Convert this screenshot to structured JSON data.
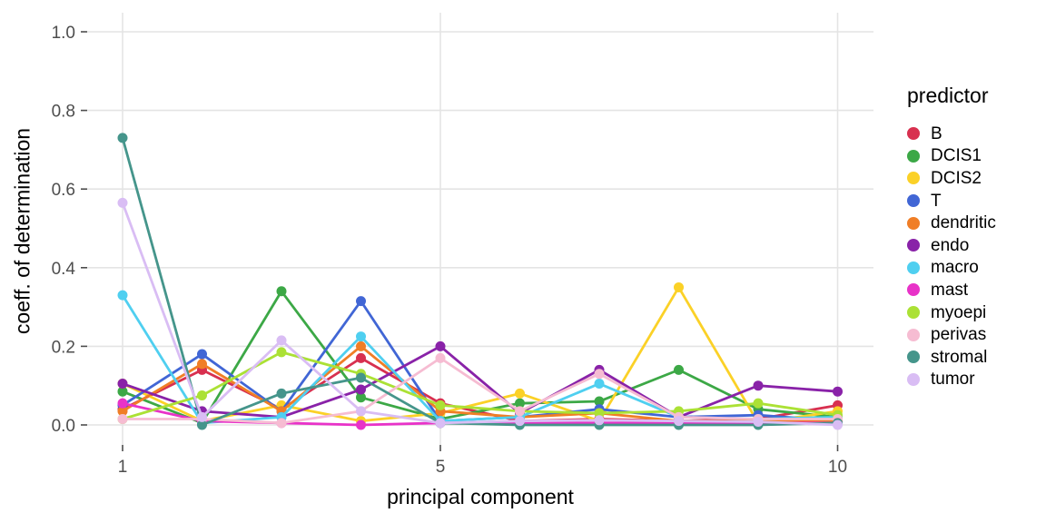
{
  "chart_data": {
    "type": "line",
    "title": "",
    "xlabel": "principal component",
    "ylabel": "coeff. of determination",
    "legend_title": "predictor",
    "legend_position": "right",
    "x": [
      1,
      2,
      3,
      4,
      5,
      6,
      7,
      8,
      9,
      10
    ],
    "x_ticks": [
      1,
      5,
      10
    ],
    "y_ticks": [
      "0.0",
      "0.2",
      "0.4",
      "0.6",
      "0.8",
      "1.0"
    ],
    "y_tick_values": [
      0.0,
      0.2,
      0.4,
      0.6,
      0.8,
      1.0
    ],
    "xlim": [
      1,
      10
    ],
    "ylim": [
      0.0,
      1.0
    ],
    "grid": "major horizontal at 0.2 steps; vertical at x=1,5,10; light gray on white",
    "series": [
      {
        "name": "B",
        "color": "#D8304F",
        "values": [
          0.04,
          0.14,
          0.04,
          0.17,
          0.055,
          0.01,
          0.015,
          0.01,
          0.015,
          0.05
        ]
      },
      {
        "name": "DCIS1",
        "color": "#3CA846",
        "values": [
          0.085,
          0.005,
          0.34,
          0.07,
          0.015,
          0.055,
          0.06,
          0.14,
          0.04,
          0.02
        ]
      },
      {
        "name": "DCIS2",
        "color": "#FBD127",
        "values": [
          0.105,
          0.01,
          0.05,
          0.01,
          0.03,
          0.08,
          0.01,
          0.35,
          0.005,
          0.035
        ]
      },
      {
        "name": "T",
        "color": "#4166D5",
        "values": [
          0.05,
          0.18,
          0.035,
          0.315,
          0.01,
          0.02,
          0.04,
          0.02,
          0.025,
          0.01
        ]
      },
      {
        "name": "dendritic",
        "color": "#F07E26",
        "values": [
          0.035,
          0.155,
          0.035,
          0.2,
          0.035,
          0.02,
          0.03,
          0.01,
          0.01,
          0.01
        ]
      },
      {
        "name": "endo",
        "color": "#8922A8",
        "values": [
          0.105,
          0.035,
          0.02,
          0.09,
          0.2,
          0.03,
          0.14,
          0.02,
          0.1,
          0.085
        ]
      },
      {
        "name": "macro",
        "color": "#4FCFF0",
        "values": [
          0.33,
          0.005,
          0.02,
          0.225,
          0.01,
          0.02,
          0.105,
          0.02,
          0.015,
          0.02
        ]
      },
      {
        "name": "mast",
        "color": "#E832C8",
        "values": [
          0.055,
          0.01,
          0.005,
          0.0,
          0.005,
          0.005,
          0.005,
          0.005,
          0.005,
          0.005
        ]
      },
      {
        "name": "myoepi",
        "color": "#ABE135",
        "values": [
          0.015,
          0.075,
          0.185,
          0.13,
          0.05,
          0.035,
          0.03,
          0.035,
          0.055,
          0.025
        ]
      },
      {
        "name": "perivas",
        "color": "#F6BCD2",
        "values": [
          0.015,
          0.015,
          0.005,
          0.035,
          0.17,
          0.035,
          0.13,
          0.02,
          0.015,
          0.015
        ]
      },
      {
        "name": "stromal",
        "color": "#45958B",
        "values": [
          0.73,
          0.0,
          0.08,
          0.12,
          0.005,
          0.0,
          0.0,
          0.0,
          0.0,
          0.005
        ]
      },
      {
        "name": "tumor",
        "color": "#D9BDF4",
        "values": [
          0.565,
          0.02,
          0.215,
          0.035,
          0.005,
          0.01,
          0.012,
          0.01,
          0.008,
          0.0
        ]
      }
    ]
  },
  "style": {
    "grid_color": "#E4E4E4",
    "tick_color": "#4D4D4D",
    "tick_label_color": "#4D4D4D",
    "background": "#FFFFFF"
  }
}
